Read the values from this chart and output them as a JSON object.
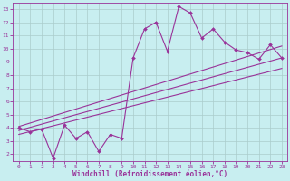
{
  "xlabel": "Windchill (Refroidissement éolien,°C)",
  "background_color": "#c8eef0",
  "line_color": "#993399",
  "grid_color": "#aacccc",
  "x_data": [
    0,
    1,
    2,
    3,
    4,
    5,
    6,
    7,
    8,
    9,
    10,
    11,
    12,
    13,
    14,
    15,
    16,
    17,
    18,
    19,
    20,
    21,
    22,
    23
  ],
  "y_main": [
    4.0,
    3.7,
    3.9,
    1.7,
    4.2,
    3.2,
    3.7,
    2.2,
    3.5,
    3.2,
    9.3,
    11.5,
    12.0,
    9.8,
    13.2,
    12.7,
    10.8,
    11.5,
    10.5,
    9.9,
    9.7,
    9.2,
    10.3,
    9.3
  ],
  "reg_upper_start": 4.1,
  "reg_upper_end": 10.2,
  "reg_mid_start": 3.8,
  "reg_mid_end": 9.3,
  "reg_lower_start": 3.5,
  "reg_lower_end": 8.5,
  "ylim": [
    1.5,
    13.5
  ],
  "xlim": [
    -0.5,
    23.5
  ],
  "yticks": [
    2,
    3,
    4,
    5,
    6,
    7,
    8,
    9,
    10,
    11,
    12,
    13
  ],
  "xticks": [
    0,
    1,
    2,
    3,
    4,
    5,
    6,
    7,
    8,
    9,
    10,
    11,
    12,
    13,
    14,
    15,
    16,
    17,
    18,
    19,
    20,
    21,
    22,
    23
  ]
}
